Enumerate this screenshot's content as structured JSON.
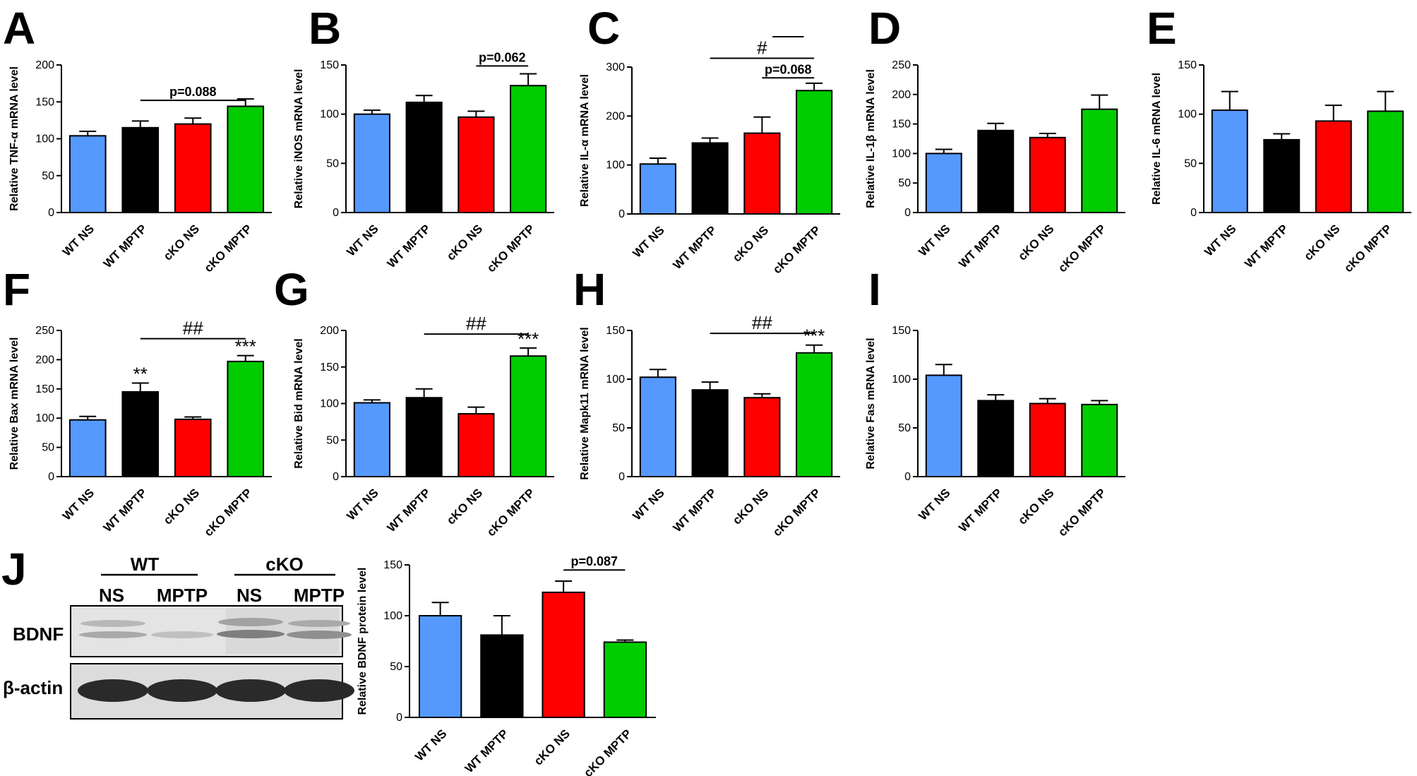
{
  "figure": {
    "blot": {
      "letter": "J",
      "groups": [
        {
          "label": "WT"
        },
        {
          "label": "cKO"
        }
      ],
      "lanes": [
        "NS",
        "MPTP",
        "NS",
        "MPTP"
      ],
      "rows": [
        {
          "label": "BDNF"
        },
        {
          "label": "β-actin"
        }
      ]
    }
  },
  "chart_data": [
    {
      "letter": "A",
      "type": "bar",
      "ylabel": "Relative TNF-α mRNA level",
      "categories": [
        "WT NS",
        "WT MPTP",
        "cKO NS",
        "cKO MPTP"
      ],
      "values": [
        104,
        115,
        120,
        144
      ],
      "errors": [
        6,
        9,
        8,
        10
      ],
      "colors": [
        "#5599ff",
        "#000000",
        "#ff0000",
        "#00cc00"
      ],
      "ylim": [
        0,
        200
      ],
      "yticks": [
        0,
        50,
        100,
        150,
        200
      ],
      "annotations": [
        {
          "text": "p=0.088",
          "from": 1,
          "to": 3,
          "value": 152
        }
      ]
    },
    {
      "letter": "B",
      "type": "bar",
      "ylabel": "Relative iNOS mRNA level",
      "categories": [
        "WT NS",
        "WT MPTP",
        "cKO NS",
        "cKO MPTP"
      ],
      "values": [
        100,
        112,
        97,
        129
      ],
      "errors": [
        4,
        7,
        6,
        12
      ],
      "colors": [
        "#5599ff",
        "#000000",
        "#ff0000",
        "#00cc00"
      ],
      "ylim": [
        0,
        150
      ],
      "yticks": [
        0,
        50,
        100,
        150
      ],
      "annotations": [
        {
          "text": "p=0.062",
          "from": 2,
          "to": 3,
          "value": 149
        }
      ]
    },
    {
      "letter": "C",
      "type": "bar",
      "ylabel": "Relative IL-α mRNA level",
      "categories": [
        "WT NS",
        "WT MPTP",
        "cKO NS",
        "cKO MPTP"
      ],
      "values": [
        102,
        145,
        165,
        252
      ],
      "errors": [
        12,
        10,
        33,
        15
      ],
      "colors": [
        "#5599ff",
        "#000000",
        "#ff0000",
        "#00cc00"
      ],
      "ylim": [
        0,
        300
      ],
      "yticks": [
        0,
        100,
        200,
        300
      ],
      "annotations": [
        {
          "text": "p=0.068",
          "from": 2,
          "to": 3,
          "value": 278
        },
        {
          "text": "#",
          "from": 1,
          "to": 3,
          "value": 318
        },
        {
          "text": "",
          "from": 2.2,
          "to": 2.8,
          "value": 362
        }
      ]
    },
    {
      "letter": "D",
      "type": "bar",
      "ylabel": "Relative IL-1β mRNA level",
      "categories": [
        "WT NS",
        "WT MPTP",
        "cKO NS",
        "cKO MPTP"
      ],
      "values": [
        100,
        139,
        127,
        175
      ],
      "errors": [
        7,
        12,
        7,
        24
      ],
      "colors": [
        "#5599ff",
        "#000000",
        "#ff0000",
        "#00cc00"
      ],
      "ylim": [
        0,
        250
      ],
      "yticks": [
        0,
        50,
        100,
        150,
        200,
        250
      ],
      "annotations": []
    },
    {
      "letter": "E",
      "type": "bar",
      "ylabel": "Relative IL-6 mRNA level",
      "categories": [
        "WT NS",
        "WT MPTP",
        "cKO NS",
        "cKO MPTP"
      ],
      "values": [
        104,
        74,
        93,
        103
      ],
      "errors": [
        19,
        6,
        16,
        20
      ],
      "colors": [
        "#5599ff",
        "#000000",
        "#ff0000",
        "#00cc00"
      ],
      "ylim": [
        0,
        150
      ],
      "yticks": [
        0,
        50,
        100,
        150
      ],
      "annotations": []
    },
    {
      "letter": "F",
      "type": "bar",
      "ylabel": "Relative Bax mRNA level",
      "categories": [
        "WT NS",
        "WT MPTP",
        "cKO NS",
        "cKO MPTP"
      ],
      "values": [
        97,
        145,
        98,
        197
      ],
      "errors": [
        6,
        15,
        4,
        10
      ],
      "colors": [
        "#5599ff",
        "#000000",
        "#ff0000",
        "#00cc00"
      ],
      "ylim": [
        0,
        250
      ],
      "yticks": [
        0,
        50,
        100,
        150,
        200,
        250
      ],
      "significance": [
        "",
        "**",
        "",
        "***"
      ],
      "annotations": [
        {
          "text": "##",
          "from": 1,
          "to": 3,
          "value": 236
        }
      ]
    },
    {
      "letter": "G",
      "type": "bar",
      "ylabel": "Relative Bid mRNA level",
      "categories": [
        "WT NS",
        "WT MPTP",
        "cKO NS",
        "cKO MPTP"
      ],
      "values": [
        101,
        108,
        86,
        165
      ],
      "errors": [
        4,
        12,
        9,
        11
      ],
      "colors": [
        "#5599ff",
        "#000000",
        "#ff0000",
        "#00cc00"
      ],
      "ylim": [
        0,
        200
      ],
      "yticks": [
        0,
        50,
        100,
        150,
        200
      ],
      "significance": [
        "",
        "",
        "",
        "***"
      ],
      "annotations": [
        {
          "text": "##",
          "from": 1,
          "to": 3,
          "value": 195
        }
      ]
    },
    {
      "letter": "H",
      "type": "bar",
      "ylabel": "Relative Mapk11 mRNA level",
      "categories": [
        "WT NS",
        "WT MPTP",
        "cKO NS",
        "cKO MPTP"
      ],
      "values": [
        102,
        89,
        81,
        127
      ],
      "errors": [
        8,
        8,
        4,
        8
      ],
      "colors": [
        "#5599ff",
        "#000000",
        "#ff0000",
        "#00cc00"
      ],
      "ylim": [
        0,
        150
      ],
      "yticks": [
        0,
        50,
        100,
        150
      ],
      "significance": [
        "",
        "",
        "",
        "***"
      ],
      "annotations": [
        {
          "text": "##",
          "from": 1,
          "to": 3,
          "value": 147
        }
      ]
    },
    {
      "letter": "I",
      "type": "bar",
      "ylabel": "Relative Fas mRNA level",
      "categories": [
        "WT NS",
        "WT MPTP",
        "cKO NS",
        "cKO MPTP"
      ],
      "values": [
        104,
        78,
        75,
        74
      ],
      "errors": [
        11,
        6,
        5,
        4
      ],
      "colors": [
        "#5599ff",
        "#000000",
        "#ff0000",
        "#00cc00"
      ],
      "ylim": [
        0,
        150
      ],
      "yticks": [
        0,
        50,
        100,
        150
      ],
      "annotations": []
    },
    {
      "letter": "",
      "type": "bar",
      "ylabel": "Relative BDNF protein level",
      "categories": [
        "WT NS",
        "WT MPTP",
        "cKO NS",
        "cKO MPTP"
      ],
      "values": [
        100,
        81,
        123,
        74
      ],
      "errors": [
        13,
        19,
        11,
        2
      ],
      "colors": [
        "#5599ff",
        "#000000",
        "#ff0000",
        "#00cc00"
      ],
      "ylim": [
        0,
        150
      ],
      "yticks": [
        0,
        50,
        100,
        150
      ],
      "annotations": [
        {
          "text": "p=0.087",
          "from": 2,
          "to": 3,
          "value": 145
        }
      ]
    }
  ]
}
